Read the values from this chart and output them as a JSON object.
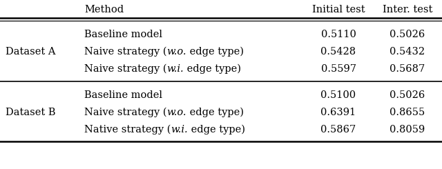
{
  "col_headers": [
    "Method",
    "Initial test",
    "Inter. test"
  ],
  "dataset_a_label": "Dataset A",
  "dataset_b_label": "Dataset B",
  "rows_a": [
    {
      "method_before": "Baseline model",
      "method_italic": "",
      "method_after": "",
      "initial": "0.5110",
      "inter": "0.5026"
    },
    {
      "method_before": "Naive strategy (",
      "method_italic": "w.o.",
      "method_after": " edge type)",
      "initial": "0.5428",
      "inter": "0.5432"
    },
    {
      "method_before": "Naive strategy (",
      "method_italic": "w.i.",
      "method_after": " edge type)",
      "initial": "0.5597",
      "inter": "0.5687"
    }
  ],
  "rows_b": [
    {
      "method_before": "Baseline model",
      "method_italic": "",
      "method_after": "",
      "initial": "0.5100",
      "inter": "0.5026"
    },
    {
      "method_before": "Naive strategy (",
      "method_italic": "w.o.",
      "method_after": " edge type)",
      "initial": "0.6391",
      "inter": "0.8655"
    },
    {
      "method_before": "Native strategy (",
      "method_italic": "w.i.",
      "method_after": " edge type)",
      "initial": "0.5867",
      "inter": "0.8059"
    }
  ],
  "bg_color": "#ffffff",
  "font_size": 10.5
}
